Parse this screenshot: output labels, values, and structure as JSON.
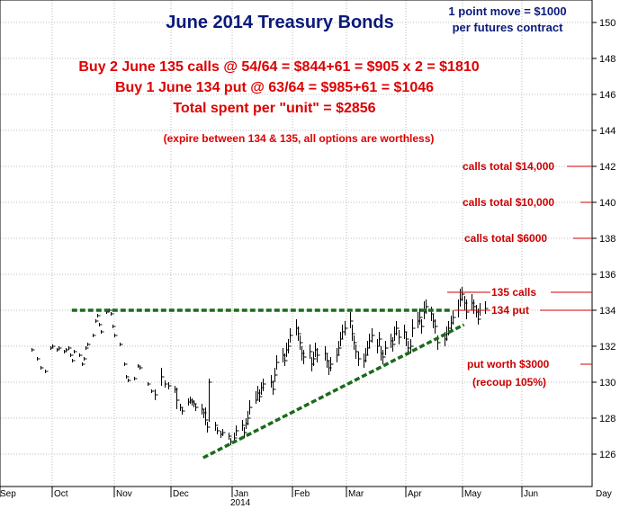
{
  "chart_data": {
    "type": "ohlc-bar",
    "title": "June 2014 Treasury Bonds",
    "note_top_right": [
      "1 point move = $1000",
      "per futures contract"
    ],
    "strategy_lines": [
      "Buy 2 June 135 calls @ 54/64 = $844+61 = $905 x 2 = $1810",
      "Buy 1 June 134 put @ 63/64 = $985+61 = $1046",
      "Total spent per \"unit\" = $2856"
    ],
    "expiry_note": "(expire between 134 & 135, all options are worthless)",
    "ylim": [
      125,
      151
    ],
    "yticks": [
      "126",
      "128",
      "130",
      "132",
      "134",
      "136",
      "138",
      "140",
      "142",
      "144",
      "146",
      "148",
      "150"
    ],
    "x_months": [
      "Sep",
      "Oct",
      "Nov",
      "Dec",
      "Jan",
      "Feb",
      "Mar",
      "Apr",
      "May",
      "Jun",
      "Day"
    ],
    "x_year": "2014",
    "grid": true,
    "levels": [
      {
        "label": "calls total $14,000",
        "value": 142,
        "color": "#cc0000"
      },
      {
        "label": "calls total $10,000",
        "value": 140,
        "color": "#cc0000"
      },
      {
        "label": "calls total $6000",
        "value": 138,
        "color": "#cc0000"
      },
      {
        "label": "135 calls",
        "value": 135,
        "color": "#cc0000"
      },
      {
        "label": "134 put",
        "value": 134,
        "color": "#cc0000"
      },
      {
        "label": "put worth $3000",
        "value": 131,
        "color": "#cc0000"
      },
      {
        "label": "(recoup 105%)",
        "value": 130,
        "color": "#cc0000"
      }
    ],
    "trendlines": [
      {
        "name": "resistance",
        "from": [
          "Oct 10",
          134
        ],
        "to": [
          "Apr 25",
          134
        ]
      },
      {
        "name": "support",
        "from": [
          "Dec 17",
          125.8
        ],
        "to": [
          "May 1",
          133.2
        ]
      }
    ],
    "bars": [
      [
        "Sep 19",
        131.8,
        131.9,
        131.7
      ],
      [
        "Sep 22",
        131.3,
        131.4,
        131.2
      ],
      [
        "Sep 24",
        130.8,
        130.9,
        130.7
      ],
      [
        "Sep 26",
        130.6,
        130.7,
        130.5
      ],
      [
        "Sep 29",
        131.9,
        132,
        131.8
      ],
      [
        "Sep 30",
        132.0,
        132.1,
        131.9
      ],
      [
        "Oct 2",
        131.8,
        131.9,
        131.7
      ],
      [
        "Oct 3",
        131.9,
        132,
        131.8
      ],
      [
        "Oct 6",
        131.7,
        131.8,
        131.6
      ],
      [
        "Oct 7",
        131.8,
        131.9,
        131.7
      ],
      [
        "Oct 8",
        131.9,
        132,
        131.8
      ],
      [
        "Oct 9",
        131.5,
        131.6,
        131.4
      ],
      [
        "Oct 10",
        131.2,
        131.3,
        131.1
      ],
      [
        "Oct 11",
        131.7,
        131.8,
        131.6
      ],
      [
        "Oct 14",
        131.5,
        131.6,
        131.4
      ],
      [
        "Oct 15",
        131.0,
        131.1,
        130.9
      ],
      [
        "Oct 16",
        131.3,
        131.4,
        131.2
      ],
      [
        "Oct 17",
        131.9,
        132,
        131.8
      ],
      [
        "Oct 18",
        132.1,
        132.2,
        132.0
      ],
      [
        "Oct 21",
        132.6,
        132.7,
        132.5
      ],
      [
        "Oct 22",
        133.4,
        133.5,
        133.3
      ],
      [
        "Oct 23",
        133.7,
        133.8,
        133.6
      ],
      [
        "Oct 24",
        133.2,
        133.3,
        133.1
      ],
      [
        "Oct 25",
        132.8,
        132.9,
        132.7
      ],
      [
        "Oct 28",
        133.9,
        134,
        133.8
      ],
      [
        "Oct 29",
        134.0,
        134.1,
        133.9
      ],
      [
        "Oct 30",
        133.8,
        133.9,
        133.7
      ],
      [
        "Oct 31",
        133.1,
        133.2,
        133.0
      ],
      [
        "Nov 1",
        132.6,
        132.7,
        132.5
      ],
      [
        "Nov 4",
        132.1,
        132.2,
        132.0
      ],
      [
        "Nov 6",
        131.0,
        131.1,
        130.9
      ],
      [
        "Nov 7",
        130.3,
        130.4,
        130.2
      ],
      [
        "Nov 8",
        130.1,
        130.2,
        130.0
      ],
      [
        "Nov 11",
        130.2,
        130.3,
        130.1
      ],
      [
        "Nov 13",
        130.9,
        131,
        130.8
      ],
      [
        "Nov 14",
        130.8,
        130.9,
        130.7
      ],
      [
        "Nov 18",
        129.9,
        130.0,
        129.8
      ],
      [
        "Nov 20",
        129.5,
        129.6,
        129.4
      ],
      [
        "Nov 22",
        129.3,
        129.6,
        129.0
      ],
      [
        "Nov 25",
        130.3,
        130.8,
        129.8
      ],
      [
        "Nov 27",
        129.9,
        130.1,
        129.7
      ],
      [
        "Nov 29",
        129.8,
        130.0,
        129.6
      ],
      [
        "Dec 2",
        129.6,
        129.8,
        129.4
      ],
      [
        "Dec 3",
        129.0,
        129.7,
        128.5
      ],
      [
        "Dec 5",
        128.6,
        128.8,
        128.4
      ],
      [
        "Dec 6",
        128.4,
        128.6,
        128.2
      ],
      [
        "Dec 9",
        128.9,
        129.1,
        128.7
      ],
      [
        "Dec 10",
        129.0,
        129.2,
        128.8
      ],
      [
        "Dec 11",
        128.9,
        129.1,
        128.7
      ],
      [
        "Dec 12",
        128.8,
        129.0,
        128.6
      ],
      [
        "Dec 13",
        128.6,
        128.8,
        128.4
      ],
      [
        "Dec 16",
        128.5,
        128.8,
        128.2
      ],
      [
        "Dec 17",
        128.3,
        128.5,
        128.0
      ],
      [
        "Dec 18",
        127.9,
        128.6,
        127.6
      ],
      [
        "Dec 19",
        127.5,
        127.8,
        127.2
      ],
      [
        "Dec 20",
        130.0,
        130.2,
        127.8
      ],
      [
        "Dec 23",
        127.6,
        127.8,
        127.3
      ],
      [
        "Dec 24",
        127.3,
        127.5,
        127.1
      ],
      [
        "Dec 26",
        127.1,
        127.3,
        126.9
      ],
      [
        "Dec 27",
        127.2,
        127.4,
        127.0
      ],
      [
        "Dec 30",
        127.0,
        127.2,
        126.8
      ],
      [
        "Dec 31",
        126.7,
        126.9,
        126.5
      ],
      [
        "Jan 2",
        126.9,
        127.2,
        126.6
      ],
      [
        "Jan 3",
        127.3,
        127.6,
        127.0
      ],
      [
        "Jan 6",
        127.6,
        127.9,
        127.3
      ],
      [
        "Jan 7",
        127.2,
        127.5,
        126.9
      ],
      [
        "Jan 8",
        127.7,
        128.0,
        127.4
      ],
      [
        "Jan 9",
        128.0,
        128.4,
        127.6
      ],
      [
        "Jan 10",
        128.6,
        129.0,
        128.2
      ],
      [
        "Jan 13",
        129.0,
        129.5,
        128.8
      ],
      [
        "Jan 14",
        129.4,
        129.8,
        129.0
      ],
      [
        "Jan 15",
        129.2,
        129.6,
        128.9
      ],
      [
        "Jan 16",
        129.7,
        130.0,
        129.3
      ],
      [
        "Jan 17",
        129.9,
        130.2,
        129.5
      ],
      [
        "Jan 21",
        130.0,
        130.4,
        129.7
      ],
      [
        "Jan 22",
        129.6,
        130.1,
        129.3
      ],
      [
        "Jan 23",
        130.4,
        130.8,
        130.0
      ],
      [
        "Jan 24",
        131.1,
        131.5,
        130.7
      ],
      [
        "Jan 27",
        131.5,
        131.9,
        131.1
      ],
      [
        "Jan 28",
        131.2,
        131.6,
        130.9
      ],
      [
        "Jan 29",
        131.8,
        132.2,
        131.4
      ],
      [
        "Jan 30",
        132.0,
        132.4,
        131.6
      ],
      [
        "Jan 31",
        132.6,
        133.0,
        132.2
      ],
      [
        "Feb 3",
        133.0,
        133.5,
        132.6
      ],
      [
        "Feb 4",
        132.7,
        133.1,
        132.3
      ],
      [
        "Feb 5",
        132.2,
        132.6,
        131.8
      ],
      [
        "Feb 6",
        131.6,
        132.0,
        131.2
      ],
      [
        "Feb 7",
        131.4,
        131.8,
        131.0
      ],
      [
        "Feb 10",
        131.7,
        132.1,
        131.3
      ],
      [
        "Feb 11",
        131.0,
        131.4,
        130.6
      ],
      [
        "Feb 12",
        131.3,
        131.7,
        130.9
      ],
      [
        "Feb 13",
        131.8,
        132.2,
        131.4
      ],
      [
        "Feb 14",
        131.5,
        131.9,
        131.1
      ],
      [
        "Feb 18",
        131.6,
        132.0,
        131.2
      ],
      [
        "Feb 19",
        131.2,
        131.6,
        130.8
      ],
      [
        "Feb 20",
        130.8,
        131.2,
        130.4
      ],
      [
        "Feb 21",
        131.0,
        131.4,
        130.6
      ],
      [
        "Feb 24",
        131.5,
        131.9,
        131.1
      ],
      [
        "Feb 25",
        131.9,
        132.3,
        131.5
      ],
      [
        "Feb 26",
        132.4,
        132.8,
        132.0
      ],
      [
        "Feb 27",
        132.8,
        133.2,
        132.4
      ],
      [
        "Feb 28",
        133.0,
        133.4,
        132.6
      ],
      [
        "Mar 3",
        133.4,
        133.9,
        133.0
      ],
      [
        "Mar 4",
        132.7,
        133.2,
        132.3
      ],
      [
        "Mar 5",
        132.2,
        132.6,
        131.8
      ],
      [
        "Mar 6",
        131.7,
        132.1,
        131.3
      ],
      [
        "Mar 7",
        131.3,
        131.7,
        130.9
      ],
      [
        "Mar 10",
        131.2,
        131.6,
        130.8
      ],
      [
        "Mar 11",
        131.5,
        131.9,
        131.1
      ],
      [
        "Mar 12",
        131.9,
        132.3,
        131.5
      ],
      [
        "Mar 13",
        132.3,
        132.7,
        131.9
      ],
      [
        "Mar 14",
        132.6,
        133.0,
        132.2
      ],
      [
        "Mar 17",
        132.0,
        132.4,
        131.6
      ],
      [
        "Mar 18",
        132.4,
        132.8,
        132.0
      ],
      [
        "Mar 19",
        131.6,
        132.0,
        131.2
      ],
      [
        "Mar 20",
        131.4,
        131.8,
        131.0
      ],
      [
        "Mar 21",
        131.9,
        132.3,
        131.5
      ],
      [
        "Mar 24",
        132.3,
        132.7,
        131.9
      ],
      [
        "Mar 25",
        132.1,
        132.5,
        131.7
      ],
      [
        "Mar 26",
        132.7,
        133.1,
        132.3
      ],
      [
        "Mar 27",
        133.0,
        133.4,
        132.6
      ],
      [
        "Mar 28",
        132.5,
        132.9,
        132.1
      ],
      [
        "Mar 31",
        132.8,
        133.2,
        132.4
      ],
      [
        "Apr 1",
        132.4,
        132.8,
        132.0
      ],
      [
        "Apr 2",
        131.9,
        132.3,
        131.5
      ],
      [
        "Apr 3",
        132.0,
        132.4,
        131.6
      ],
      [
        "Apr 4",
        133.0,
        133.5,
        132.5
      ],
      [
        "Apr 7",
        133.4,
        133.9,
        133.0
      ],
      [
        "Apr 8",
        133.6,
        134.1,
        133.2
      ],
      [
        "Apr 9",
        133.1,
        133.5,
        132.7
      ],
      [
        "Apr 10",
        133.9,
        134.5,
        133.5
      ],
      [
        "Apr 11",
        134.2,
        134.6,
        133.8
      ],
      [
        "Apr 14",
        133.8,
        134.2,
        133.4
      ],
      [
        "Apr 15",
        133.4,
        133.8,
        133.0
      ],
      [
        "Apr 16",
        133.1,
        133.5,
        132.7
      ],
      [
        "Apr 17",
        132.2,
        132.6,
        131.8
      ],
      [
        "Apr 21",
        132.4,
        132.8,
        132.0
      ],
      [
        "Apr 22",
        132.7,
        133.1,
        132.3
      ],
      [
        "Apr 23",
        133.0,
        133.4,
        132.6
      ],
      [
        "Apr 24",
        133.3,
        133.7,
        132.9
      ],
      [
        "Apr 25",
        133.6,
        134.0,
        133.2
      ],
      [
        "Apr 28",
        134.0,
        134.6,
        133.6
      ],
      [
        "Apr 29",
        134.6,
        135.2,
        134.2
      ],
      [
        "Apr 30",
        134.9,
        135.3,
        134.5
      ],
      [
        "May 1",
        134.4,
        134.8,
        134.0
      ],
      [
        "May 2",
        133.9,
        134.6,
        133.5
      ],
      [
        "May 5",
        134.4,
        134.9,
        134.0
      ],
      [
        "May 6",
        134.2,
        134.6,
        133.8
      ],
      [
        "May 7",
        133.9,
        134.3,
        133.6
      ],
      [
        "May 8",
        133.5,
        134.1,
        133.2
      ],
      [
        "May 9",
        134.0,
        134.4,
        133.7
      ],
      [
        "May 12",
        134.1,
        134.5,
        133.8
      ]
    ]
  }
}
